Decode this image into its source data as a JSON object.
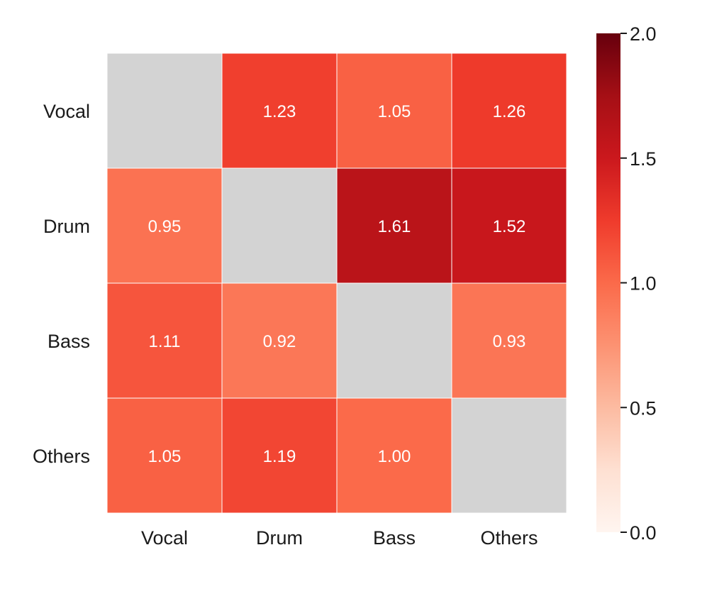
{
  "chart_data": {
    "type": "heatmap",
    "title": "",
    "xlabel": "",
    "ylabel": "",
    "x_categories": [
      "Vocal",
      "Drum",
      "Bass",
      "Others"
    ],
    "y_categories": [
      "Vocal",
      "Drum",
      "Bass",
      "Others"
    ],
    "values": [
      [
        null,
        1.23,
        1.05,
        1.26
      ],
      [
        0.95,
        null,
        1.61,
        1.52
      ],
      [
        1.11,
        0.92,
        null,
        0.93
      ],
      [
        1.05,
        1.19,
        1.0,
        null
      ]
    ],
    "value_labels": [
      [
        "",
        "1.23",
        "1.05",
        "1.26"
      ],
      [
        "0.95",
        "",
        "1.61",
        "1.52"
      ],
      [
        "1.11",
        "0.92",
        "",
        "0.93"
      ],
      [
        "1.05",
        "1.19",
        "1.00",
        ""
      ]
    ],
    "missing_color": "#d3d3d3",
    "colormap": "Reds",
    "colorbar": {
      "min": 0.0,
      "max": 2.0,
      "ticks": [
        0.0,
        0.5,
        1.0,
        1.5,
        2.0
      ],
      "tick_labels": [
        "0.0",
        "0.5",
        "1.0",
        "1.5",
        "2.0"
      ]
    },
    "grid": true,
    "annotation_color": "#ffffff"
  }
}
